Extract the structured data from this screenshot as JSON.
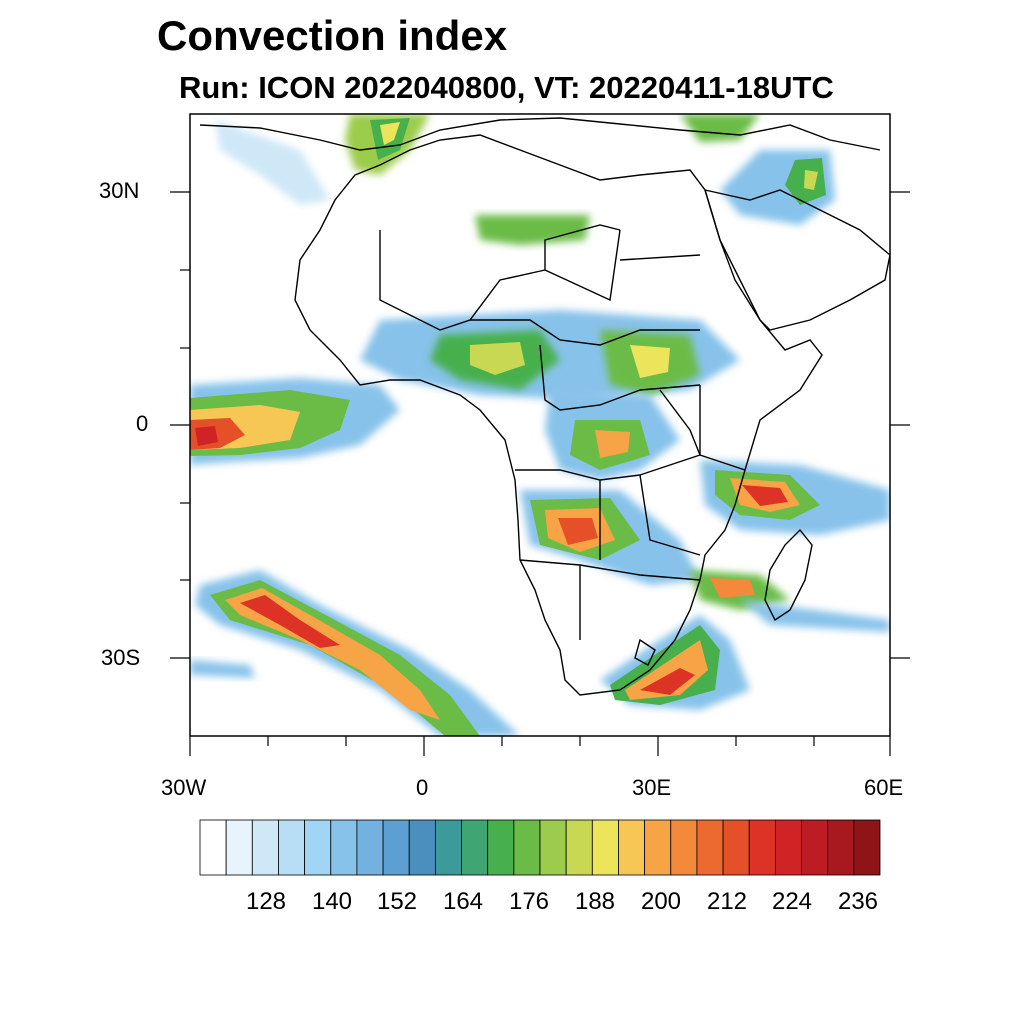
{
  "title": "Convection index",
  "subtitle": "Run: ICON 2022040800,  VT: 20220411-18UTC",
  "axes": {
    "lat_labels": [
      "30N",
      "0",
      "30S"
    ],
    "lon_labels": [
      "30W",
      "0",
      "30E",
      "60E"
    ]
  },
  "colorbar": {
    "tick_labels": [
      "128",
      "140",
      "152",
      "164",
      "176",
      "188",
      "200",
      "212",
      "224",
      "236"
    ],
    "colors": [
      "#ffffff",
      "#e8f4fb",
      "#cfe8f7",
      "#b8def5",
      "#a0d6f4",
      "#87c2ea",
      "#73b1e0",
      "#5e9fd3",
      "#4b8fbf",
      "#3d9a9a",
      "#3fa673",
      "#47b04d",
      "#6bbc47",
      "#9ccc4c",
      "#c8d853",
      "#ece45a",
      "#f6c755",
      "#f6a445",
      "#f2893b",
      "#ec6a30",
      "#e55029",
      "#dd3327",
      "#cf2325",
      "#bc1d24",
      "#a8191f",
      "#8e1418"
    ]
  }
}
